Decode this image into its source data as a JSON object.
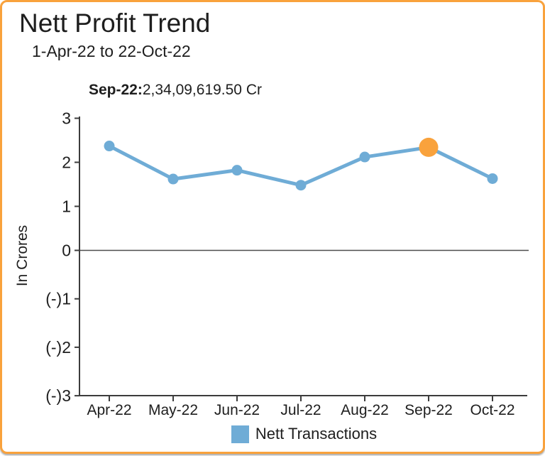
{
  "colors": {
    "border": "#F9A23C",
    "text": "#1e1e1e",
    "axis": "#3c3c3c"
  },
  "chart_data": {
    "type": "line",
    "title": "Nett Profit Trend",
    "subtitle": "1-Apr-22 to 22-Oct-22",
    "tooltip": {
      "label": "Sep-22:",
      "value": "2,34,09,619.50 Cr"
    },
    "ylabel": "In Crores",
    "xlabel": "",
    "categories": [
      "Apr-22",
      "May-22",
      "Jun-22",
      "Jul-22",
      "Aug-22",
      "Sep-22",
      "Oct-22"
    ],
    "series": [
      {
        "name": "Nett Transactions",
        "values": [
          2.37,
          1.62,
          1.82,
          1.48,
          2.12,
          2.34,
          1.63
        ]
      }
    ],
    "highlight": {
      "category": "Sep-22",
      "index": 5,
      "display_value": "2,34,09,619.50 Cr"
    },
    "y_ticks": [
      {
        "label": "3",
        "value": 3
      },
      {
        "label": "2",
        "value": 2
      },
      {
        "label": "1",
        "value": 1
      },
      {
        "label": "0",
        "value": 0
      },
      {
        "label": "(-)1",
        "value": -1
      },
      {
        "label": "(-)2",
        "value": -2
      },
      {
        "label": "(-)3",
        "value": -3
      }
    ],
    "ylim": [
      -3,
      3
    ],
    "grid": false,
    "legend": {
      "position": "bottom",
      "items": [
        {
          "label": "Nett Transactions",
          "color": "#6FACD6"
        }
      ]
    },
    "colors": {
      "line": "#6FACD6",
      "highlight": "#F9A23C"
    }
  }
}
